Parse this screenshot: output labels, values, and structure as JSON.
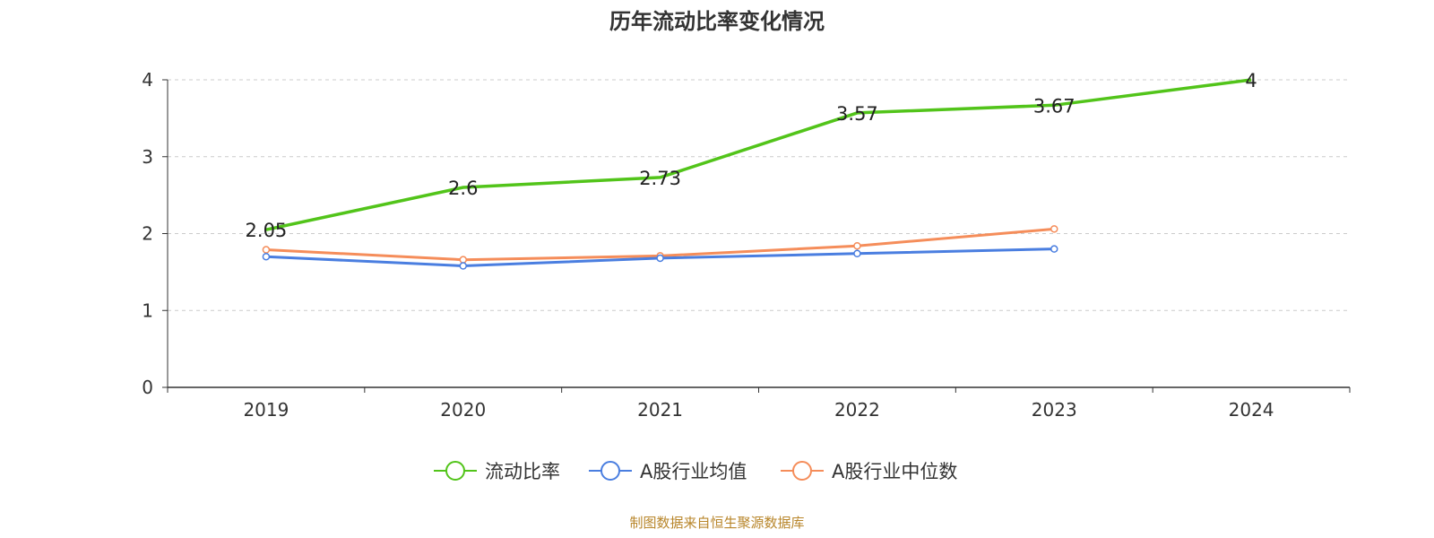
{
  "chart_data": {
    "type": "line",
    "title": "历年流动比率变化情况",
    "xlabel": "",
    "ylabel": "",
    "categories": [
      "2019",
      "2020",
      "2021",
      "2022",
      "2023",
      "2024"
    ],
    "ylim": [
      0,
      4
    ],
    "yticks": [
      0,
      1,
      2,
      3,
      4
    ],
    "grid": true,
    "legend_position": "bottom",
    "series": [
      {
        "name": "流动比率",
        "color": "#52c41a",
        "values": [
          2.05,
          2.6,
          2.73,
          3.57,
          3.67,
          4
        ],
        "labels": [
          "2.05",
          "2.6",
          "2.73",
          "3.57",
          "3.67",
          "4"
        ]
      },
      {
        "name": "A股行业均值",
        "color": "#4a7ee0",
        "values": [
          1.7,
          1.58,
          1.68,
          1.74,
          1.8,
          null
        ]
      },
      {
        "name": "A股行业中位数",
        "color": "#f58d5a",
        "values": [
          1.79,
          1.66,
          1.71,
          1.84,
          2.06,
          null
        ]
      }
    ]
  },
  "source_note": "制图数据来自恒生聚源数据库"
}
